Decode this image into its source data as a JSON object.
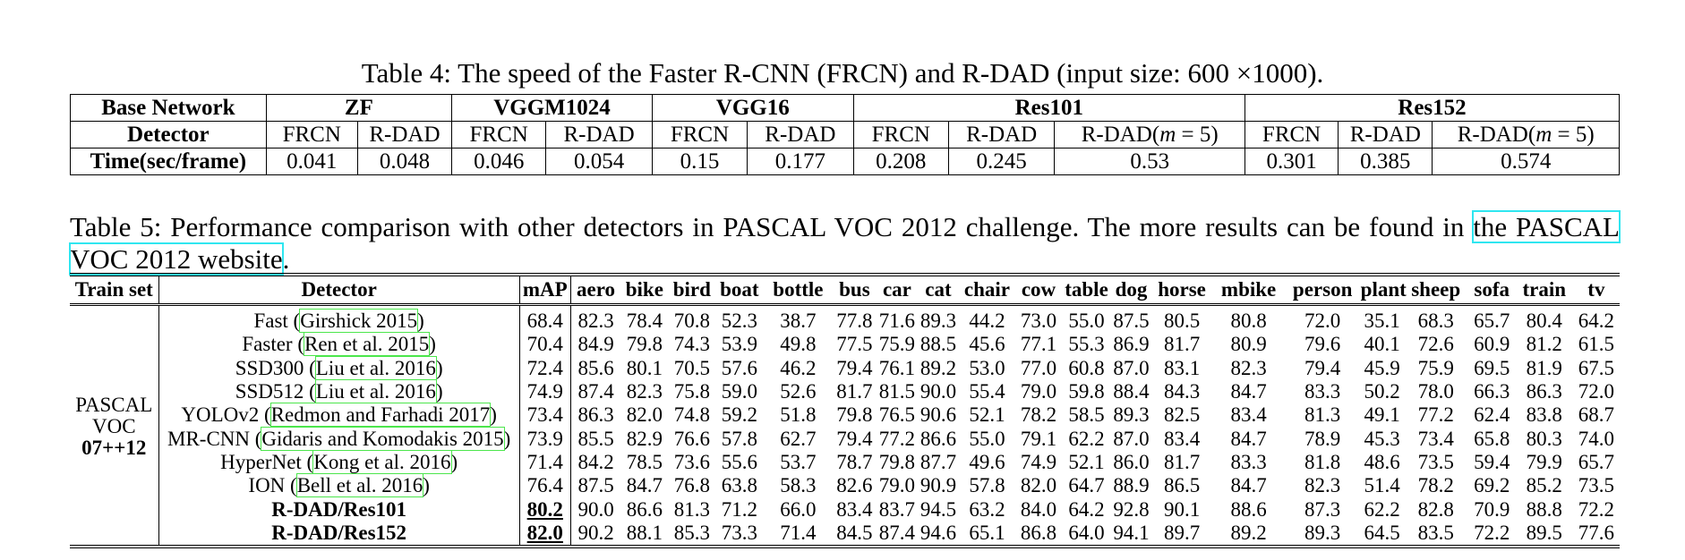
{
  "table4": {
    "caption_prefix": "Table 4: The speed of the Faster R-CNN (FRCN) and R-DAD (input size: 600 ",
    "caption_times": "×",
    "caption_suffix": "1000).",
    "row_labels": {
      "base_network": "Base Network",
      "detector": "Detector",
      "time": "Time(sec/frame)"
    },
    "networks": [
      {
        "name": "ZF",
        "detectors": [
          "FRCN",
          "R-DAD"
        ],
        "times": [
          "0.041",
          "0.048"
        ]
      },
      {
        "name": "VGGM1024",
        "detectors": [
          "FRCN",
          "R-DAD"
        ],
        "times": [
          "0.046",
          "0.054"
        ]
      },
      {
        "name": "VGG16",
        "detectors": [
          "FRCN",
          "R-DAD"
        ],
        "times": [
          "0.15",
          "0.177"
        ]
      },
      {
        "name": "Res101",
        "detectors": [
          "FRCN",
          "R-DAD",
          "R-DAD(m = 5)"
        ],
        "times": [
          "0.208",
          "0.245",
          "0.53"
        ]
      },
      {
        "name": "Res152",
        "detectors": [
          "FRCN",
          "R-DAD",
          "R-DAD(m = 5)"
        ],
        "times": [
          "0.301",
          "0.385",
          "0.574"
        ]
      }
    ],
    "rdad_m_prefix": "R-DAD(",
    "rdad_m_var": "m",
    "rdad_m_suffix": " = 5)"
  },
  "table5": {
    "caption_text": "Table 5: Performance comparison with other detectors in PASCAL VOC 2012 challenge. The more results can be found in ",
    "caption_link": "the PASCAL VOC 2012 website",
    "caption_end": ".",
    "headers": [
      "Train set",
      "Detector",
      "mAP",
      "aero",
      "bike",
      "bird",
      "boat",
      "bottle",
      "bus",
      "car",
      "cat",
      "chair",
      "cow",
      "table",
      "dog",
      "horse",
      "mbike",
      "person",
      "plant",
      "sheep",
      "sofa",
      "train",
      "tv"
    ],
    "train_set": [
      "PASCAL",
      "VOC",
      "07++12"
    ],
    "rows": [
      {
        "det_name": "Fast (",
        "det_ref": "Girshick 2015",
        "det_end": ")",
        "bold": false,
        "map": "68.4",
        "vals": [
          "82.3",
          "78.4",
          "70.8",
          "52.3",
          "38.7",
          "77.8",
          "71.6",
          "89.3",
          "44.2",
          "73.0",
          "55.0",
          "87.5",
          "80.5",
          "80.8",
          "72.0",
          "35.1",
          "68.3",
          "65.7",
          "80.4",
          "64.2"
        ]
      },
      {
        "det_name": "Faster (",
        "det_ref": "Ren et al. 2015",
        "det_end": ")",
        "bold": false,
        "map": "70.4",
        "vals": [
          "84.9",
          "79.8",
          "74.3",
          "53.9",
          "49.8",
          "77.5",
          "75.9",
          "88.5",
          "45.6",
          "77.1",
          "55.3",
          "86.9",
          "81.7",
          "80.9",
          "79.6",
          "40.1",
          "72.6",
          "60.9",
          "81.2",
          "61.5"
        ]
      },
      {
        "det_name": "SSD300 (",
        "det_ref": "Liu et al. 2016",
        "det_end": ")",
        "bold": false,
        "map": "72.4",
        "vals": [
          "85.6",
          "80.1",
          "70.5",
          "57.6",
          "46.2",
          "79.4",
          "76.1",
          "89.2",
          "53.0",
          "77.0",
          "60.8",
          "87.0",
          "83.1",
          "82.3",
          "79.4",
          "45.9",
          "75.9",
          "69.5",
          "81.9",
          "67.5"
        ]
      },
      {
        "det_name": "SSD512 (",
        "det_ref": "Liu et al. 2016",
        "det_end": ")",
        "bold": false,
        "map": "74.9",
        "vals": [
          "87.4",
          "82.3",
          "75.8",
          "59.0",
          "52.6",
          "81.7",
          "81.5",
          "90.0",
          "55.4",
          "79.0",
          "59.8",
          "88.4",
          "84.3",
          "84.7",
          "83.3",
          "50.2",
          "78.0",
          "66.3",
          "86.3",
          "72.0"
        ]
      },
      {
        "det_name": "YOLOv2 (",
        "det_ref": "Redmon and Farhadi 2017",
        "det_end": ")",
        "bold": false,
        "map": "73.4",
        "vals": [
          "86.3",
          "82.0",
          "74.8",
          "59.2",
          "51.8",
          "79.8",
          "76.5",
          "90.6",
          "52.1",
          "78.2",
          "58.5",
          "89.3",
          "82.5",
          "83.4",
          "81.3",
          "49.1",
          "77.2",
          "62.4",
          "83.8",
          "68.7"
        ]
      },
      {
        "det_name": "MR-CNN (",
        "det_ref": "Gidaris and Komodakis 2015",
        "det_end": ")",
        "bold": false,
        "map": "73.9",
        "vals": [
          "85.5",
          "82.9",
          "76.6",
          "57.8",
          "62.7",
          "79.4",
          "77.2",
          "86.6",
          "55.0",
          "79.1",
          "62.2",
          "87.0",
          "83.4",
          "84.7",
          "78.9",
          "45.3",
          "73.4",
          "65.8",
          "80.3",
          "74.0"
        ]
      },
      {
        "det_name": "HyperNet (",
        "det_ref": "Kong et al. 2016",
        "det_end": ")",
        "bold": false,
        "map": "71.4",
        "vals": [
          "84.2",
          "78.5",
          "73.6",
          "55.6",
          "53.7",
          "78.7",
          "79.8",
          "87.7",
          "49.6",
          "74.9",
          "52.1",
          "86.0",
          "81.7",
          "83.3",
          "81.8",
          "48.6",
          "73.5",
          "59.4",
          "79.9",
          "65.7"
        ]
      },
      {
        "det_name": "ION (",
        "det_ref": "Bell et al. 2016",
        "det_end": ")",
        "bold": false,
        "map": "76.4",
        "vals": [
          "87.5",
          "84.7",
          "76.8",
          "63.8",
          "58.3",
          "82.6",
          "79.0",
          "90.9",
          "57.8",
          "82.0",
          "64.7",
          "88.9",
          "86.5",
          "84.7",
          "82.3",
          "51.4",
          "78.2",
          "69.2",
          "85.2",
          "73.5"
        ]
      },
      {
        "det_name": "R-DAD/Res101",
        "det_ref": "",
        "det_end": "",
        "bold": true,
        "map": "80.2",
        "vals": [
          "90.0",
          "86.6",
          "81.3",
          "71.2",
          "66.0",
          "83.4",
          "83.7",
          "94.5",
          "63.2",
          "84.0",
          "64.2",
          "92.8",
          "90.1",
          "88.6",
          "87.3",
          "62.2",
          "82.8",
          "70.9",
          "88.8",
          "72.2"
        ]
      },
      {
        "det_name": "R-DAD/Res152",
        "det_ref": "",
        "det_end": "",
        "bold": true,
        "map": "82.0",
        "vals": [
          "90.2",
          "88.1",
          "85.3",
          "73.3",
          "71.4",
          "84.5",
          "87.4",
          "94.6",
          "65.1",
          "86.8",
          "64.0",
          "94.1",
          "89.7",
          "89.2",
          "89.3",
          "64.5",
          "83.5",
          "72.2",
          "89.5",
          "77.6"
        ]
      }
    ]
  },
  "colors": {
    "link_box": "#2fe6f0",
    "ref_box": "#4ce64c"
  }
}
